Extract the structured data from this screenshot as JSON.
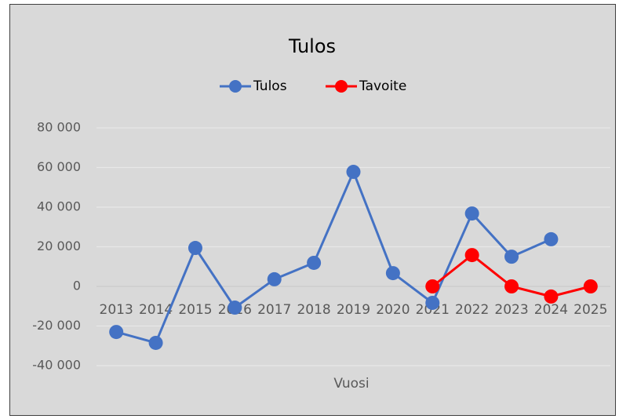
{
  "chart_data": {
    "type": "line",
    "title": "Tulos",
    "x_label": "Vuosi",
    "categories": [
      "2013",
      "2014",
      "2015",
      "2016",
      "2017",
      "2018",
      "2019",
      "2020",
      "2021",
      "2022",
      "2023",
      "2024",
      "2025"
    ],
    "series": [
      {
        "name": "Tulos",
        "color": "#4472c4",
        "values": [
          -23000,
          -28500,
          19400,
          -10700,
          3600,
          11900,
          57800,
          6700,
          -8300,
          36800,
          15000,
          23800,
          null
        ]
      },
      {
        "name": "Tavoite",
        "color": "#ff0000",
        "values": [
          null,
          null,
          null,
          null,
          null,
          null,
          null,
          null,
          0,
          15800,
          0,
          -5100,
          0
        ]
      }
    ],
    "ylim": [
      -40000,
      80000
    ],
    "yticks": [
      {
        "value": -40000,
        "label": "-40 000"
      },
      {
        "value": -20000,
        "label": "-20 000"
      },
      0,
      {
        "value": 20000,
        "label": "20 000"
      },
      {
        "value": 40000,
        "label": "40 000"
      },
      {
        "value": 60000,
        "label": "60 000"
      },
      {
        "value": 80000,
        "label": "80 000"
      }
    ],
    "grid": true,
    "legend": "top"
  }
}
